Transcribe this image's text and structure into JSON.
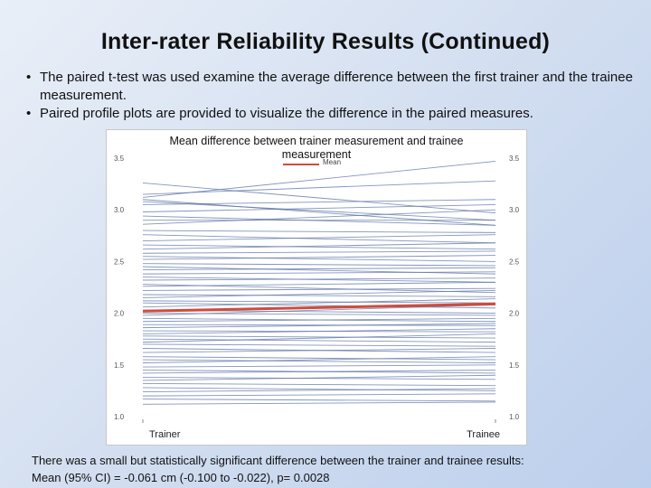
{
  "slide": {
    "title": "Inter-rater Reliability Results (Continued)",
    "bullets": [
      "The paired t-test was used examine the average difference between the first trainer and the trainee measurement.",
      "Paired profile plots are provided to visualize the difference in the paired measures."
    ],
    "footnote_lines": [
      "There was a small but statistically significant difference between the trainer and trainee results:",
      "Mean (95% CI) = -0.061 cm (-0.100 to -0.022), p= 0.0028"
    ]
  },
  "chart_data": {
    "type": "line",
    "title": "Mean difference between trainer measurement and trainee measurement",
    "legend": {
      "entries": [
        "Mean"
      ],
      "placement": "top-center"
    },
    "categories": [
      "Trainer",
      "Trainee"
    ],
    "ylim": [
      1.0,
      3.5
    ],
    "yticks": [
      "1.0",
      "1.5",
      "2.0",
      "2.5",
      "3.0",
      "3.5"
    ],
    "y_axis_sides": [
      "left",
      "right"
    ],
    "grid": false,
    "colors": {
      "pairs": "#5a72a6",
      "mean": "#d14b3a"
    },
    "mean": {
      "name": "Mean",
      "values": [
        2.02,
        2.09
      ]
    },
    "pairs": [
      [
        3.12,
        3.47
      ],
      [
        3.26,
        2.97
      ],
      [
        3.15,
        3.28
      ],
      [
        3.1,
        2.85
      ],
      [
        3.08,
        2.9
      ],
      [
        3.05,
        3.1
      ],
      [
        2.98,
        3.05
      ],
      [
        2.94,
        2.85
      ],
      [
        2.9,
        2.9
      ],
      [
        2.86,
        3.0
      ],
      [
        2.8,
        2.78
      ],
      [
        2.76,
        2.68
      ],
      [
        2.7,
        2.76
      ],
      [
        2.66,
        2.62
      ],
      [
        2.62,
        2.68
      ],
      [
        2.58,
        2.6
      ],
      [
        2.55,
        2.5
      ],
      [
        2.52,
        2.56
      ],
      [
        2.48,
        2.46
      ],
      [
        2.45,
        2.38
      ],
      [
        2.42,
        2.44
      ],
      [
        2.38,
        2.4
      ],
      [
        2.35,
        2.3
      ],
      [
        2.32,
        2.34
      ],
      [
        2.28,
        2.2
      ],
      [
        2.26,
        2.3
      ],
      [
        2.22,
        2.24
      ],
      [
        2.18,
        2.16
      ],
      [
        2.15,
        2.22
      ],
      [
        2.12,
        2.1
      ],
      [
        2.1,
        2.05
      ],
      [
        2.06,
        2.14
      ],
      [
        2.03,
        2.0
      ],
      [
        2.0,
        1.98
      ],
      [
        1.98,
        2.08
      ],
      [
        1.95,
        1.92
      ],
      [
        1.92,
        1.95
      ],
      [
        1.89,
        1.88
      ],
      [
        1.86,
        1.9
      ],
      [
        1.83,
        1.82
      ],
      [
        1.8,
        1.85
      ],
      [
        1.78,
        1.76
      ],
      [
        1.75,
        1.72
      ],
      [
        1.72,
        1.8
      ],
      [
        1.7,
        1.68
      ],
      [
        1.66,
        1.62
      ],
      [
        1.62,
        1.66
      ],
      [
        1.58,
        1.55
      ],
      [
        1.55,
        1.52
      ],
      [
        1.52,
        1.58
      ],
      [
        1.48,
        1.5
      ],
      [
        1.45,
        1.42
      ],
      [
        1.42,
        1.45
      ],
      [
        1.38,
        1.36
      ],
      [
        1.35,
        1.4
      ],
      [
        1.32,
        1.3
      ],
      [
        1.28,
        1.25
      ],
      [
        1.24,
        1.27
      ],
      [
        1.2,
        1.22
      ],
      [
        1.17,
        1.15
      ],
      [
        1.12,
        1.14
      ]
    ]
  }
}
